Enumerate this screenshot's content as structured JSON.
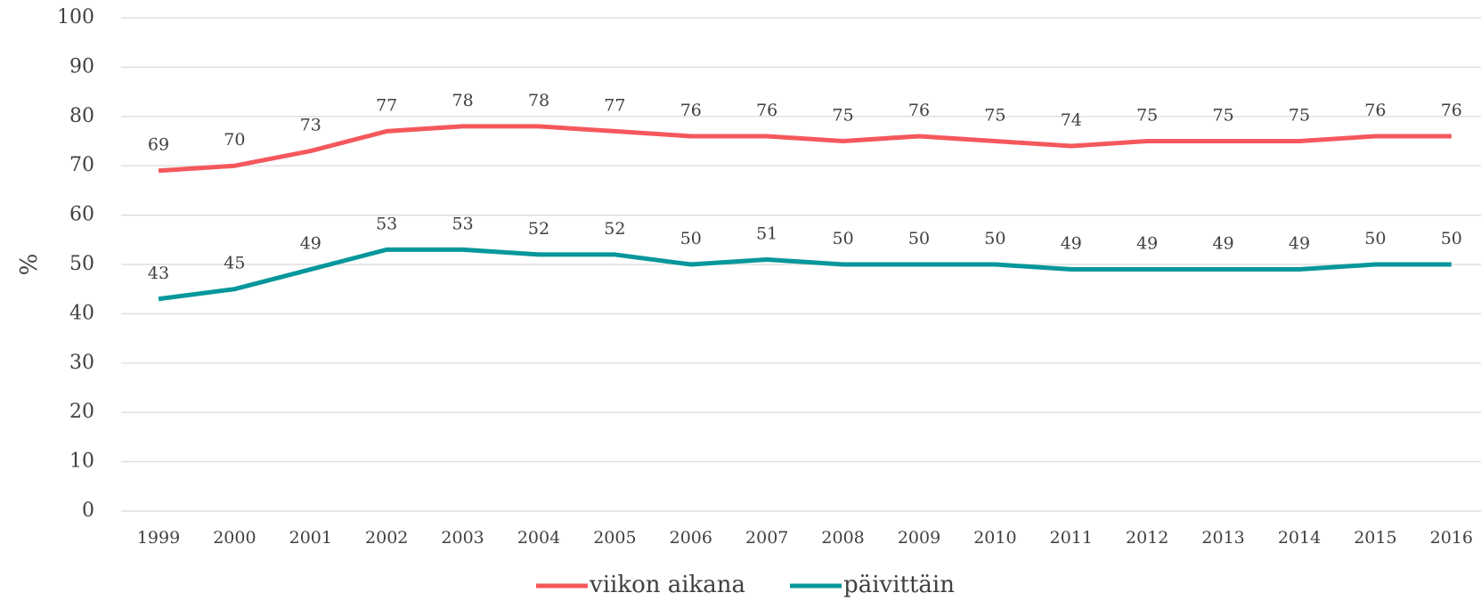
{
  "chart_data": {
    "type": "line",
    "y_label": "%",
    "categories": [
      "1999",
      "2000",
      "2001",
      "2002",
      "2003",
      "2004",
      "2005",
      "2006",
      "2007",
      "2008",
      "2009",
      "2010",
      "2011",
      "2012",
      "2013",
      "2014",
      "2015",
      "2016"
    ],
    "series": [
      {
        "name": "viikon aikana",
        "color": "#f4585c",
        "values": [
          69,
          70,
          73,
          77,
          78,
          78,
          77,
          76,
          76,
          75,
          76,
          75,
          74,
          75,
          75,
          75,
          76,
          76
        ]
      },
      {
        "name": "päivittäin",
        "color": "#05979b",
        "values": [
          43,
          45,
          49,
          53,
          53,
          52,
          52,
          50,
          51,
          50,
          50,
          50,
          49,
          49,
          49,
          49,
          50,
          50
        ]
      }
    ],
    "ylim": [
      0,
      100
    ],
    "yticks": [
      0,
      10,
      20,
      30,
      40,
      50,
      60,
      70,
      80,
      90,
      100
    ],
    "grid": true,
    "legend": "bottom"
  }
}
